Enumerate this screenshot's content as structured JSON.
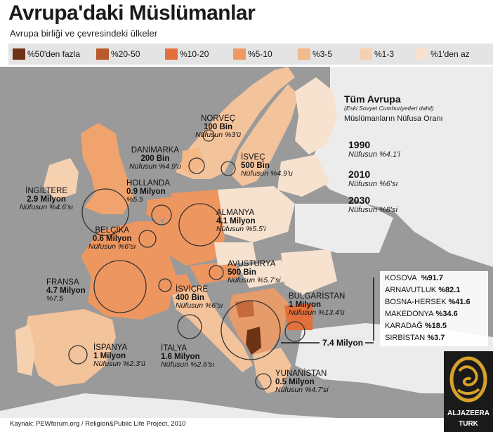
{
  "header": {
    "title": "Avrupa'daki Müslümanlar",
    "subtitle": "Avrupa birliği ve çevresindeki ülkeler"
  },
  "legend": [
    {
      "label": "%50'den fazla",
      "color": "#6e3214"
    },
    {
      "label": "%20-50",
      "color": "#b85a2c"
    },
    {
      "label": "%10-20",
      "color": "#e2703a"
    },
    {
      "label": "%5-10",
      "color": "#ef9a63"
    },
    {
      "label": "%3-5",
      "color": "#f2b98b"
    },
    {
      "label": "%1-3",
      "color": "#f6d1b0"
    },
    {
      "label": "%1'den az",
      "color": "#f7e2d0"
    }
  ],
  "countries": [
    {
      "name": "NORVEÇ",
      "pop": "100 Bin",
      "pct": "Nüfusun %3'ü"
    },
    {
      "name": "DANİMARKA",
      "pop": "200 Bin",
      "pct": "Nüfusun %4.9'u"
    },
    {
      "name": "İSVEÇ",
      "pop": "500 Bin",
      "pct": "Nüfusun %4.9'u"
    },
    {
      "name": "HOLLANDA",
      "pop": "0.9 Milyon",
      "pct": "%5.5"
    },
    {
      "name": "İNGİLTERE",
      "pop": "2.9 Milyon",
      "pct": "Nüfusun %4.6'sı"
    },
    {
      "name": "ALMANYA",
      "pop": "4.1 Milyon",
      "pct": "Nüfusun %5.5'i"
    },
    {
      "name": "BELÇİKA",
      "pop": "0.6 Milyon",
      "pct": "Nüfusun %6'sı"
    },
    {
      "name": "AVUSTURYA",
      "pop": "500 Bin",
      "pct": "Nüfusun %5.7'si"
    },
    {
      "name": "FRANSA",
      "pop": "4.7 Milyon",
      "pct": "%7.5"
    },
    {
      "name": "İSVİÇRE",
      "pop": "400 Bin",
      "pct": "Nüfusun %6'sı"
    },
    {
      "name": "BULGARİSTAN",
      "pop": "1 Milyon",
      "pct": "Nüfusun %13.4'ü"
    },
    {
      "name": "İSPANYA",
      "pop": "1 Milyon",
      "pct": "Nüfusun %2.3'ü"
    },
    {
      "name": "İTALYA",
      "pop": "1.6 Milyon",
      "pct": "Nüfusun %2.6'sı"
    },
    {
      "name": "YUNANİSTAN",
      "pop": "0.5 Milyon",
      "pct": "Nüfusun %4.7'si"
    }
  ],
  "all_europe": {
    "heading": "Tüm Avrupa",
    "note": "(Eski Sovyet Cumhuriyetleri dahil)",
    "label": "Müslümanların Nüfusa Oranı",
    "years": [
      {
        "year": "1990",
        "value": "Nüfusun %4.1'i"
      },
      {
        "year": "2010",
        "value": "Nüfusun %6'sı"
      },
      {
        "year": "2030",
        "value": "Nüfusun %8'si"
      }
    ]
  },
  "balkans": {
    "total": "7.4 Milyon",
    "rows": [
      {
        "name": "KOSOVA",
        "pct": "%91.7"
      },
      {
        "name": "ARNAVUTLUK",
        "pct": "%82.1"
      },
      {
        "name": "BOSNA-HERSEK",
        "pct": "%41.6"
      },
      {
        "name": "MAKEDONYA",
        "pct": "%34.6"
      },
      {
        "name": "KARADAĞ",
        "pct": "%18.5"
      },
      {
        "name": "SIRBİSTAN",
        "pct": "%3.7"
      }
    ]
  },
  "source": "Kaynak: PEWforum.org /  Religion&Public Life Project, 2010",
  "logo": {
    "line1": "ALJAZEERA",
    "line2": "TURK"
  },
  "colors": {
    "sea": "#9a9a9a",
    "nonEU": "#ececec",
    "legend_bg": "#e4e4e4"
  }
}
